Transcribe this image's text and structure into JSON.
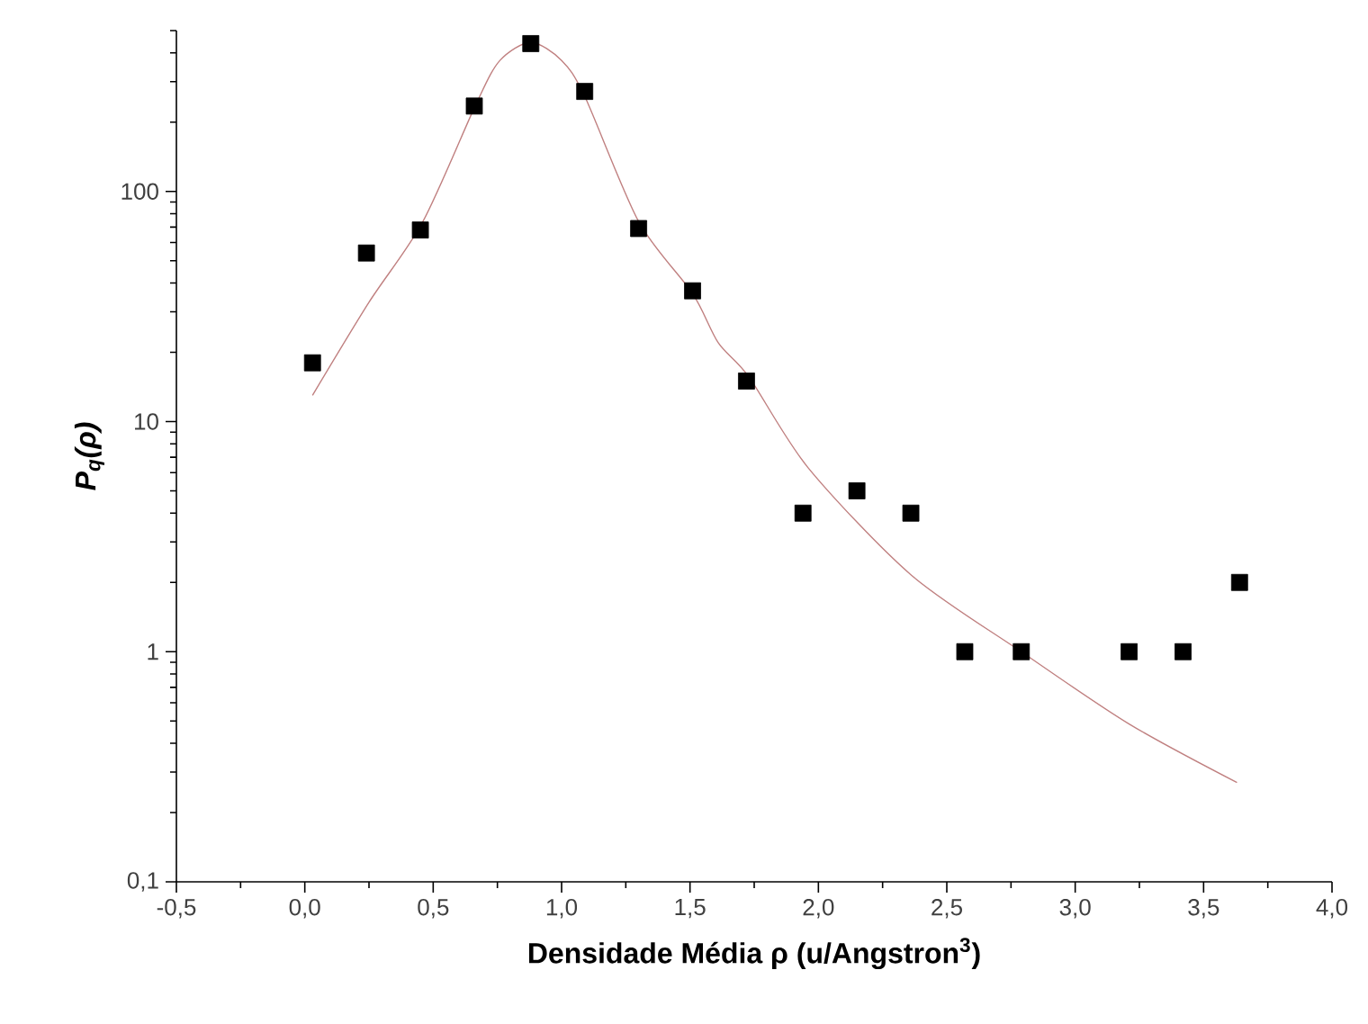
{
  "chart_data": {
    "type": "scatter",
    "xlabel": "Densidade Média ρ (u/Angstron$^{3}$)",
    "ylabel": "P$_{q}$(ρ)",
    "log": "y",
    "marker": "square",
    "xlim": [
      -0.5,
      4.0
    ],
    "ylim": [
      0.1,
      500
    ],
    "xticks": [
      {
        "value": -0.5,
        "label": "-0,5"
      },
      {
        "value": 0,
        "label": "0,0"
      },
      {
        "value": 0.5,
        "label": "0,5"
      },
      {
        "value": 1,
        "label": "1,0"
      },
      {
        "value": 1.5,
        "label": "1,5"
      },
      {
        "value": 2,
        "label": "2,0"
      },
      {
        "value": 2.5,
        "label": "2,5"
      },
      {
        "value": 3,
        "label": "3,0"
      },
      {
        "value": 3.5,
        "label": "3,5"
      },
      {
        "value": 4,
        "label": "4,0"
      }
    ],
    "yticks": [
      {
        "value": 0.1,
        "label": "0,1"
      },
      1,
      10,
      100
    ],
    "series": [
      {
        "color": "#000000",
        "x": [
          0.03,
          0.24,
          0.45,
          0.66,
          0.88,
          1.09,
          1.3,
          1.51,
          1.72,
          1.94,
          2.15,
          2.36,
          2.57,
          2.79,
          3.21,
          3.42,
          3.64
        ],
        "values": [
          18,
          54,
          68,
          235,
          439,
          272,
          69,
          37,
          15,
          4,
          5,
          4,
          1,
          1,
          1,
          1,
          2
        ]
      },
      {
        "type": "line",
        "color": "#c08080",
        "marker": "none",
        "line_style": "solid",
        "x": [
          0.03,
          0.25,
          0.46,
          0.67,
          0.76,
          0.88,
          1.0,
          1.09,
          1.3,
          1.51,
          1.61,
          1.73,
          1.96,
          2.36,
          2.79,
          3.21,
          3.63
        ],
        "values": [
          13,
          33,
          74,
          244,
          371,
          445,
          371,
          259,
          74,
          36,
          22,
          15.6,
          6.3,
          2.16,
          1,
          0.485,
          0.27
        ]
      }
    ]
  }
}
